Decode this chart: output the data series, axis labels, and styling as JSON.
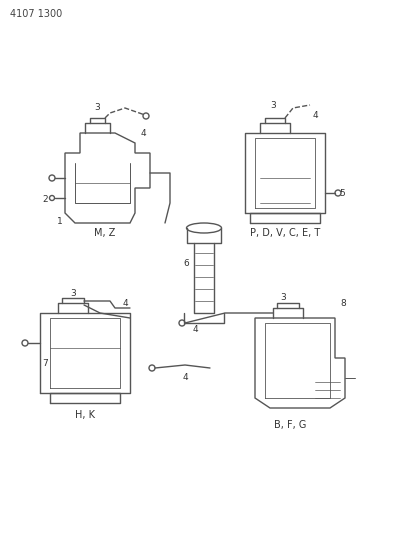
{
  "title": "4107 1300",
  "background_color": "#ffffff",
  "line_color": "#555555",
  "text_color": "#333333",
  "fig_width": 4.08,
  "fig_height": 5.33,
  "dpi": 100,
  "labels": {
    "top_left_code": "4107 1300",
    "top_left_diagram": "M, Z",
    "top_right_diagram": "P, D, V, C, E, T",
    "bottom_left_diagram": "H, K",
    "bottom_right_diagram": "B, F, G"
  },
  "part_numbers": {
    "top_left": [
      "1",
      "2",
      "3",
      "4"
    ],
    "top_right": [
      "3",
      "4",
      "5"
    ],
    "center": [
      "6"
    ],
    "bottom_left": [
      "3",
      "4",
      "7"
    ],
    "bottom_right": [
      "3",
      "4",
      "8"
    ],
    "center_bottom": [
      "4"
    ]
  }
}
